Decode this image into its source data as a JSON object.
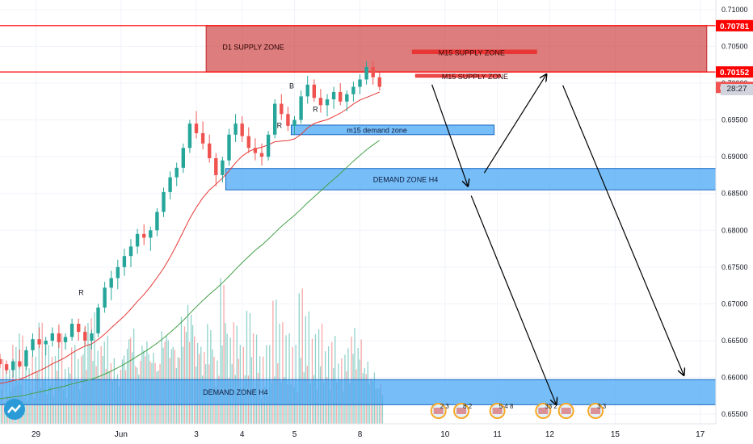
{
  "chart_data": {
    "type": "candlestick",
    "symbol_context": "",
    "y_axis": {
      "range": [
        0.6537,
        0.7113
      ],
      "ticks": [
        "0.71000",
        "0.70500",
        "0.70000",
        "0.69500",
        "0.69000",
        "0.68500",
        "0.68000",
        "0.67500",
        "0.67000",
        "0.66500",
        "0.66000",
        "0.65500"
      ],
      "tick_values": [
        0.71,
        0.705,
        0.7,
        0.695,
        0.69,
        0.685,
        0.68,
        0.675,
        0.67,
        0.665,
        0.66,
        0.655
      ]
    },
    "x_axis": {
      "ticks": [
        "29",
        "Jun",
        "3",
        "4",
        "5",
        "8",
        "10",
        "11",
        "12",
        "15",
        "17"
      ],
      "tick_index": [
        5.5,
        18.5,
        30,
        37,
        45,
        55,
        68,
        76,
        84,
        94,
        107
      ]
    },
    "price_labels": [
      {
        "text": "0.70781",
        "value": 0.70781,
        "color": "#ff0000"
      },
      {
        "text": "0.70152",
        "value": 0.70152,
        "color": "#ff0000"
      },
      {
        "text": "0.69942",
        "value": 0.69942,
        "color": "#f05350"
      }
    ],
    "countdown": "28:27",
    "zones": [
      {
        "label": "D1 SUPPLY ZONE",
        "type": "supply",
        "y_top": 0.70781,
        "y_bottom": 0.70152,
        "x_start": 31.5,
        "x_end": 108,
        "label_x": 34,
        "label_y": 0.7049
      },
      {
        "label": "M15 SUPPLY ZONE",
        "type": "supply-line",
        "y_top": 0.7045,
        "y_bottom": 0.704,
        "x_start": 63,
        "x_end": 82,
        "label_x": 67,
        "label_y": 0.7041
      },
      {
        "label": "M15 SUPPLY ZONE",
        "type": "supply-line",
        "y_top": 0.7012,
        "y_bottom": 0.7008,
        "x_start": 63.5,
        "x_end": 76.5,
        "label_x": 67.5,
        "label_y": 0.7009
      },
      {
        "label": "m15 demand zone",
        "type": "demand",
        "y_top": 0.6943,
        "y_bottom": 0.693,
        "x_start": 44.5,
        "x_end": 75.5,
        "label_x": 53,
        "label_y": 0.6936
      },
      {
        "label": "DEMAND ZONE H4",
        "type": "demand",
        "y_top": 0.6884,
        "y_bottom": 0.6855,
        "x_start": 34.5,
        "x_end": 110.5,
        "label_x": 57,
        "label_y": 0.6869
      },
      {
        "label": "DEMAND ZONE H4",
        "type": "demand",
        "y_top": 0.6597,
        "y_bottom": 0.6563,
        "x_start": -1,
        "x_end": 110.5,
        "label_x": 31,
        "label_y": 0.658
      }
    ],
    "horizontal_lines": [
      {
        "value": 0.70781,
        "color": "#ff0000"
      },
      {
        "value": 0.70152,
        "color": "#ff0000"
      }
    ],
    "annotations": [
      {
        "text": "B",
        "x": 44.2,
        "y": 0.6993
      },
      {
        "text": "R",
        "x": 47.8,
        "y": 0.6961
      },
      {
        "text": "R",
        "x": 42.3,
        "y": 0.6939
      },
      {
        "text": "R",
        "x": 12,
        "y": 0.6712
      }
    ],
    "arrows": [
      {
        "from": [
          66,
          0.6998
        ],
        "to": [
          71.5,
          0.686
        ]
      },
      {
        "from": [
          74,
          0.6878
        ],
        "to": [
          83.5,
          0.7012
        ]
      },
      {
        "from": [
          86,
          0.6997
        ],
        "to": [
          104.5,
          0.6603
        ]
      },
      {
        "from": [
          72,
          0.6847
        ],
        "to": [
          85,
          0.6563
        ]
      }
    ],
    "candles": [
      [
        0.6625,
        0.6632,
        0.6613,
        0.6618
      ],
      [
        0.6618,
        0.6623,
        0.6605,
        0.661
      ],
      [
        0.661,
        0.6625,
        0.66,
        0.6622
      ],
      [
        0.6622,
        0.6638,
        0.6612,
        0.6615
      ],
      [
        0.6615,
        0.6642,
        0.661,
        0.6637
      ],
      [
        0.6637,
        0.666,
        0.6628,
        0.6652
      ],
      [
        0.6652,
        0.6668,
        0.664,
        0.6645
      ],
      [
        0.6645,
        0.6655,
        0.663,
        0.665
      ],
      [
        0.665,
        0.6668,
        0.6642,
        0.666
      ],
      [
        0.666,
        0.6672,
        0.664,
        0.6648
      ],
      [
        0.6648,
        0.666,
        0.6638,
        0.6655
      ],
      [
        0.6655,
        0.668,
        0.665,
        0.6673
      ],
      [
        0.6673,
        0.668,
        0.665,
        0.6662
      ],
      [
        0.6662,
        0.667,
        0.6642,
        0.665
      ],
      [
        0.665,
        0.6665,
        0.6638,
        0.666
      ],
      [
        0.666,
        0.67,
        0.6655,
        0.6695
      ],
      [
        0.6695,
        0.673,
        0.6688,
        0.6722
      ],
      [
        0.6722,
        0.6745,
        0.6705,
        0.6735
      ],
      [
        0.6735,
        0.676,
        0.672,
        0.675
      ],
      [
        0.675,
        0.6775,
        0.6738,
        0.6765
      ],
      [
        0.6765,
        0.6788,
        0.675,
        0.6778
      ],
      [
        0.6778,
        0.6802,
        0.6768,
        0.6795
      ],
      [
        0.6795,
        0.6808,
        0.678,
        0.679
      ],
      [
        0.679,
        0.6805,
        0.6772,
        0.68
      ],
      [
        0.68,
        0.683,
        0.6792,
        0.6825
      ],
      [
        0.6825,
        0.6858,
        0.6818,
        0.6852
      ],
      [
        0.6852,
        0.688,
        0.6842,
        0.6872
      ],
      [
        0.6872,
        0.6892,
        0.686,
        0.6885
      ],
      [
        0.6885,
        0.6918,
        0.6878,
        0.6912
      ],
      [
        0.6912,
        0.695,
        0.6905,
        0.6945
      ],
      [
        0.6945,
        0.6962,
        0.6925,
        0.6932
      ],
      [
        0.6932,
        0.6948,
        0.691,
        0.6918
      ],
      [
        0.6918,
        0.693,
        0.6892,
        0.6898
      ],
      [
        0.6898,
        0.6905,
        0.686,
        0.6875
      ],
      [
        0.6875,
        0.69,
        0.6865,
        0.6895
      ],
      [
        0.6895,
        0.6938,
        0.6888,
        0.693
      ],
      [
        0.693,
        0.6958,
        0.692,
        0.6945
      ],
      [
        0.6945,
        0.6955,
        0.692,
        0.6928
      ],
      [
        0.6928,
        0.694,
        0.6905,
        0.6912
      ],
      [
        0.6912,
        0.6925,
        0.6895,
        0.6905
      ],
      [
        0.6905,
        0.6918,
        0.6888,
        0.69
      ],
      [
        0.69,
        0.6935,
        0.6895,
        0.693
      ],
      [
        0.693,
        0.6978,
        0.6925,
        0.6972
      ],
      [
        0.6972,
        0.6985,
        0.695,
        0.6958
      ],
      [
        0.6958,
        0.6968,
        0.6935,
        0.6942
      ],
      [
        0.6942,
        0.6955,
        0.693,
        0.695
      ],
      [
        0.695,
        0.699,
        0.6945,
        0.6982
      ],
      [
        0.6982,
        0.701,
        0.6972,
        0.6998
      ],
      [
        0.6998,
        0.7005,
        0.6975,
        0.698
      ],
      [
        0.698,
        0.6992,
        0.696,
        0.697
      ],
      [
        0.697,
        0.6985,
        0.6955,
        0.6978
      ],
      [
        0.6978,
        0.6995,
        0.6965,
        0.6988
      ],
      [
        0.6988,
        0.7,
        0.697,
        0.6975
      ],
      [
        0.6975,
        0.699,
        0.6962,
        0.6985
      ],
      [
        0.6985,
        0.7002,
        0.6975,
        0.6995
      ],
      [
        0.6995,
        0.7012,
        0.6985,
        0.7005
      ],
      [
        0.7005,
        0.703,
        0.6998,
        0.7022
      ],
      [
        0.7022,
        0.703,
        0.6998,
        0.7008
      ],
      [
        0.7008,
        0.7015,
        0.699,
        0.6995
      ]
    ],
    "volumes": [
      0.6,
      0.5,
      0.7,
      0.8,
      0.5,
      0.6,
      0.9,
      0.7,
      0.6,
      0.8,
      0.5,
      0.7,
      0.6,
      0.9,
      1.0,
      0.7,
      0.8,
      0.6,
      0.5,
      0.7,
      0.9,
      0.6,
      0.8,
      0.7,
      0.6,
      0.9,
      0.8,
      0.7,
      1.0,
      1.1,
      0.8,
      0.7,
      0.9,
      0.6,
      1.3,
      0.8,
      0.9,
      0.7,
      1.0,
      0.8,
      0.6,
      0.7,
      1.1,
      0.9,
      0.8,
      0.7,
      1.2,
      1.0,
      0.8,
      0.9,
      0.7,
      0.8,
      0.6,
      0.7,
      0.9,
      0.8,
      0.6,
      0.5,
      0.4
    ],
    "event_badges": [
      {
        "x": 67,
        "text": "2 3"
      },
      {
        "x": 70.5,
        "text": "8 2"
      },
      {
        "x": 76,
        "text": "5 4 8"
      },
      {
        "x": 83,
        "text": "33 2"
      },
      {
        "x": 86.5,
        "text": ""
      },
      {
        "x": 91,
        "text": "3 3"
      }
    ]
  }
}
